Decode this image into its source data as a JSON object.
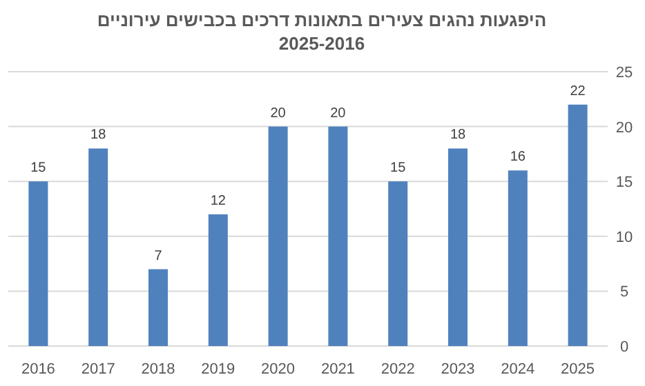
{
  "chart_data": {
    "type": "bar",
    "title": "היפגעות נהגים צעירים בתאונות דרכים בכבישים עירוניים",
    "subtitle": "2025-2016",
    "categories": [
      "2016",
      "2017",
      "2018",
      "2019",
      "2020",
      "2021",
      "2022",
      "2023",
      "2024",
      "2025"
    ],
    "values": [
      15,
      18,
      7,
      12,
      20,
      20,
      15,
      18,
      16,
      22
    ],
    "color": "#4f81bd",
    "ylim": [
      0,
      25
    ],
    "yticks": [
      0,
      5,
      10,
      15,
      20,
      25
    ],
    "grid": "y",
    "data_labels": true
  }
}
